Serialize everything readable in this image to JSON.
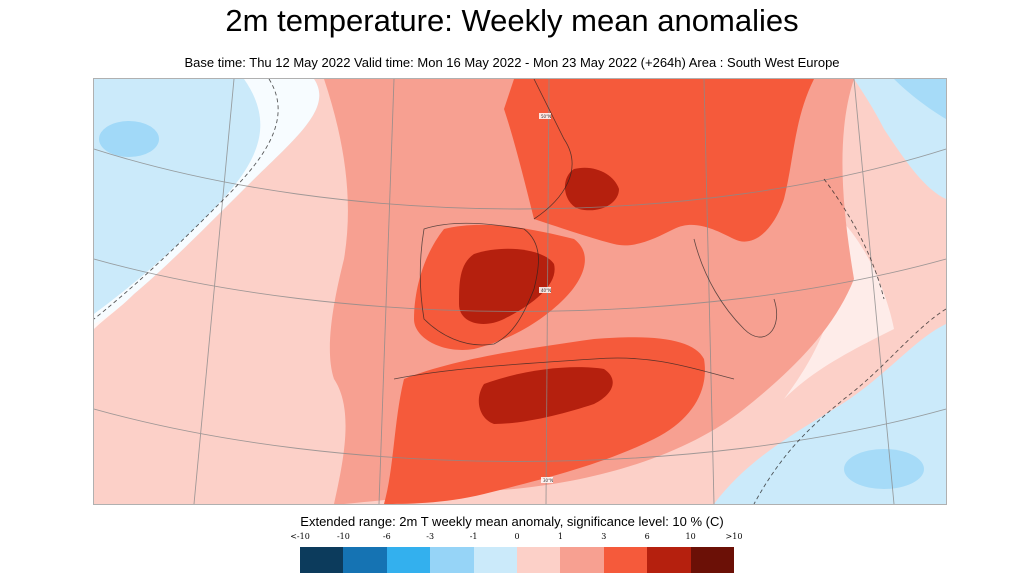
{
  "title": "2m temperature: Weekly mean anomalies",
  "subtitle": "Base time: Thu 12 May 2022 Valid time: Mon 16 May 2022 - Mon 23 May 2022 (+264h) Area : South West Europe",
  "map": {
    "region": "South West Europe",
    "graticule_labels": [
      "50°N",
      "40°N",
      "30°N"
    ]
  },
  "legend": {
    "title": "Extended range: 2m T weekly mean anomaly, significance level: 10 % (C)",
    "ticks": [
      "<-10",
      "-10",
      "-6",
      "-3",
      "-1",
      "0",
      "1",
      "3",
      "6",
      "10",
      ">10"
    ],
    "colors": [
      "#0c3b5c",
      "#1573b3",
      "#33b0ee",
      "#96d4f7",
      "#cbeafa",
      "#fcd0c8",
      "#f7a091",
      "#f55a3b",
      "#b5200e",
      "#6b1006"
    ]
  }
}
